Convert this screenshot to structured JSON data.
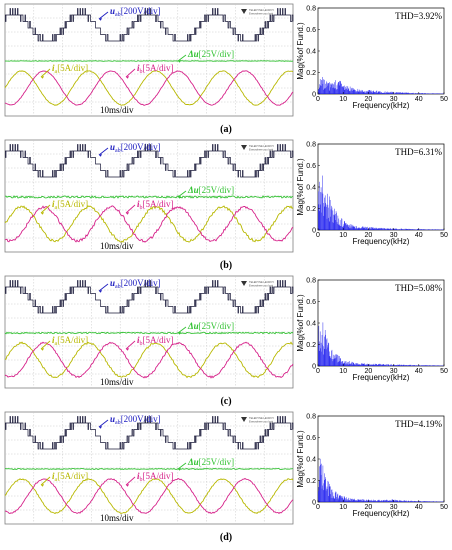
{
  "colors": {
    "voltage": "#1b1b3a",
    "dc_ripple": "#33c233",
    "current_a": "#b8b800",
    "current_b": "#d6228a",
    "label_blue": "#2020c0",
    "fft_bar": "#1a1aee"
  },
  "logo": {
    "line1": "TELEDYNE LECROY",
    "line2": "Everywhere you look"
  },
  "panels": [
    {
      "caption": "(a)",
      "timebase": "10ms/div",
      "label_uab_symbol": "u",
      "label_uab_sub": "ab",
      "label_uab_scale": "[200V/div]",
      "label_du_symbol": "Δu",
      "label_du_scale": "[25V/div]",
      "label_ia_symbol": "i",
      "label_ia_sub": "a",
      "label_ia_scale": "[5A/div]",
      "label_ib_symbol": "i",
      "label_ib_sub": "b",
      "label_ib_scale": "[5A/div]",
      "thd": "THD=3.92%"
    },
    {
      "caption": "(b)",
      "timebase": "10ms/div",
      "label_uab_symbol": "u",
      "label_uab_sub": "ab",
      "label_uab_scale": "[200V/div]",
      "label_du_symbol": "Δu",
      "label_du_scale": "[25V/div]",
      "label_ia_symbol": "i",
      "label_ia_sub": "a",
      "label_ia_scale": "[5A/div]",
      "label_ib_symbol": "i",
      "label_ib_sub": "b",
      "label_ib_scale": "[5A/div]",
      "thd": "THD=6.31%"
    },
    {
      "caption": "(c)",
      "timebase": "10ms/div",
      "label_uab_symbol": "u",
      "label_uab_sub": "ab",
      "label_uab_scale": "[200V/div]",
      "label_du_symbol": "Δu",
      "label_du_scale": "[25V/div]",
      "label_ia_symbol": "i",
      "label_ia_sub": "a",
      "label_ia_scale": "[5A/div]",
      "label_ib_symbol": "i",
      "label_ib_sub": "b",
      "label_ib_scale": "[5A/div]",
      "thd": "THD=5.08%"
    },
    {
      "caption": "(d)",
      "timebase": "10ms/div",
      "label_uab_symbol": "u",
      "label_uab_sub": "ab",
      "label_uab_scale": "[200V/div]",
      "label_du_symbol": "Δu",
      "label_du_scale": "[25V/div]",
      "label_ia_symbol": "i",
      "label_ia_sub": "a",
      "label_ia_scale": "[5A/div]",
      "label_ib_symbol": "i",
      "label_ib_sub": "b",
      "label_ib_scale": "[5A/div]",
      "thd": "THD=4.19%"
    }
  ],
  "chart_data": [
    {
      "type": "bar",
      "xlabel": "Frequency(kHz)",
      "ylabel": "Mag(%of Fund.)",
      "xlim": [
        0,
        50
      ],
      "ylim": [
        0,
        0.8
      ],
      "xticks": [
        0,
        10,
        20,
        30,
        40,
        50
      ],
      "yticks": [
        0,
        0.2,
        0.4,
        0.6,
        0.8
      ],
      "annotation": "THD=3.92%",
      "envelope_kHz": [
        0,
        1,
        2,
        3,
        5,
        7,
        9,
        10,
        12,
        15,
        18,
        20,
        25,
        30,
        35,
        40,
        50
      ],
      "envelope_mag": [
        0.14,
        0.18,
        0.16,
        0.12,
        0.11,
        0.13,
        0.13,
        0.1,
        0.08,
        0.05,
        0.04,
        0.04,
        0.03,
        0.02,
        0.015,
        0.01,
        0.005
      ]
    },
    {
      "type": "bar",
      "xlabel": "Frequency(kHz)",
      "ylabel": "Mag(%of Fund.)",
      "xlim": [
        0,
        50
      ],
      "ylim": [
        0,
        0.8
      ],
      "xticks": [
        0,
        10,
        20,
        30,
        40,
        50
      ],
      "yticks": [
        0,
        0.2,
        0.4,
        0.6,
        0.8
      ],
      "annotation": "THD=6.31%",
      "envelope_kHz": [
        0,
        1,
        2,
        3,
        4,
        5,
        6,
        8,
        10,
        12,
        15,
        20,
        25,
        30,
        40,
        50
      ],
      "envelope_mag": [
        0.45,
        0.6,
        0.5,
        0.42,
        0.35,
        0.28,
        0.22,
        0.15,
        0.1,
        0.07,
        0.04,
        0.03,
        0.02,
        0.015,
        0.01,
        0.005
      ]
    },
    {
      "type": "bar",
      "xlabel": "Frequency(kHz)",
      "ylabel": "Mag(%of Fund.)",
      "xlim": [
        0,
        50
      ],
      "ylim": [
        0,
        0.8
      ],
      "xticks": [
        0,
        10,
        20,
        30,
        40,
        50
      ],
      "yticks": [
        0,
        0.2,
        0.4,
        0.6,
        0.8
      ],
      "annotation": "THD=5.08%",
      "envelope_kHz": [
        0,
        1,
        2,
        3,
        4,
        5,
        6,
        8,
        10,
        12,
        15,
        20,
        25,
        30,
        40,
        50
      ],
      "envelope_mag": [
        0.36,
        0.5,
        0.42,
        0.32,
        0.26,
        0.2,
        0.15,
        0.1,
        0.07,
        0.05,
        0.03,
        0.025,
        0.02,
        0.015,
        0.01,
        0.005
      ]
    },
    {
      "type": "bar",
      "xlabel": "Frequency(kHz)",
      "ylabel": "Mag(%of Fund.)",
      "xlim": [
        0,
        50
      ],
      "ylim": [
        0,
        0.8
      ],
      "xticks": [
        0,
        10,
        20,
        30,
        40,
        50
      ],
      "yticks": [
        0,
        0.2,
        0.4,
        0.6,
        0.8
      ],
      "annotation": "THD=4.19%",
      "envelope_kHz": [
        0,
        1,
        2,
        3,
        4,
        5,
        6,
        8,
        10,
        12,
        15,
        20,
        25,
        30,
        35,
        40,
        50
      ],
      "envelope_mag": [
        0.3,
        0.42,
        0.35,
        0.26,
        0.2,
        0.15,
        0.12,
        0.08,
        0.06,
        0.04,
        0.03,
        0.025,
        0.02,
        0.025,
        0.015,
        0.01,
        0.005
      ]
    }
  ]
}
